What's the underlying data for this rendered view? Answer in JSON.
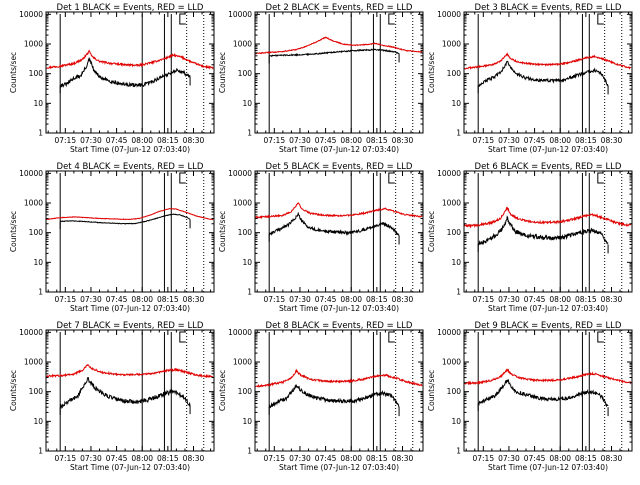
{
  "chart_data": {
    "type": "line",
    "series_colors": {
      "events": "#000000",
      "lld": "#e00000"
    },
    "x_tick_labels": [
      "07:15",
      "07:30",
      "07:45",
      "08:00",
      "08:15",
      "08:30"
    ],
    "x_tick_minutes": [
      15,
      30,
      45,
      60,
      75,
      90
    ],
    "y_tick_labels": [
      "1",
      "10",
      "100",
      "1000",
      "10000"
    ],
    "y_tick_values": [
      1,
      10,
      100,
      1000,
      10000
    ],
    "x_minutes_range": [
      3.7,
      102
    ],
    "ylim": [
      1,
      12000
    ],
    "y_scale": "log",
    "ylabel": "Counts/sec",
    "xlabel": "Start Time (07-Jun-12 07:03:40)",
    "marker_lines": {
      "solid_minutes": [
        12,
        60,
        73,
        77
      ],
      "dotted_minutes": [
        86,
        96
      ],
      "flag_minutes": [
        82
      ]
    },
    "panels": [
      {
        "title": "Det 1 BLACK = Events, RED = LLD",
        "black_start": 12,
        "black_end": 88,
        "black_points": [
          [
            12,
            40
          ],
          [
            16,
            45
          ],
          [
            20,
            70
          ],
          [
            24,
            85
          ],
          [
            27,
            160
          ],
          [
            29,
            300
          ],
          [
            30,
            230
          ],
          [
            32,
            120
          ],
          [
            36,
            70
          ],
          [
            42,
            55
          ],
          [
            48,
            45
          ],
          [
            54,
            42
          ],
          [
            60,
            40
          ],
          [
            66,
            55
          ],
          [
            72,
            80
          ],
          [
            77,
            110
          ],
          [
            80,
            130
          ],
          [
            84,
            110
          ],
          [
            88,
            80
          ]
        ],
        "black_noise": 0.06,
        "red_points": [
          [
            4,
            160
          ],
          [
            12,
            180
          ],
          [
            20,
            220
          ],
          [
            25,
            300
          ],
          [
            29,
            560
          ],
          [
            31,
            360
          ],
          [
            35,
            260
          ],
          [
            42,
            220
          ],
          [
            50,
            200
          ],
          [
            58,
            190
          ],
          [
            66,
            240
          ],
          [
            73,
            320
          ],
          [
            78,
            420
          ],
          [
            83,
            360
          ],
          [
            90,
            230
          ],
          [
            96,
            175
          ],
          [
            100,
            160
          ]
        ],
        "red_noise": 0.03
      },
      {
        "title": "Det 2 BLACK = Events, RED = LLD",
        "black_start": 12,
        "black_end": 88,
        "black_points": [
          [
            12,
            400
          ],
          [
            20,
            420
          ],
          [
            28,
            430
          ],
          [
            35,
            450
          ],
          [
            42,
            480
          ],
          [
            48,
            520
          ],
          [
            55,
            560
          ],
          [
            62,
            600
          ],
          [
            68,
            620
          ],
          [
            74,
            650
          ],
          [
            78,
            620
          ],
          [
            84,
            560
          ],
          [
            88,
            480
          ]
        ],
        "black_noise": 0.02,
        "red_points": [
          [
            4,
            480
          ],
          [
            12,
            520
          ],
          [
            20,
            560
          ],
          [
            28,
            650
          ],
          [
            34,
            850
          ],
          [
            40,
            1200
          ],
          [
            45,
            1700
          ],
          [
            49,
            1300
          ],
          [
            55,
            1000
          ],
          [
            62,
            900
          ],
          [
            68,
            950
          ],
          [
            74,
            1050
          ],
          [
            78,
            900
          ],
          [
            84,
            800
          ],
          [
            92,
            600
          ],
          [
            100,
            550
          ]
        ],
        "red_noise": 0.015
      },
      {
        "title": "Det 3 BLACK = Events, RED = LLD",
        "black_start": 12,
        "black_end": 88,
        "black_points": [
          [
            12,
            40
          ],
          [
            17,
            60
          ],
          [
            22,
            80
          ],
          [
            26,
            130
          ],
          [
            29,
            260
          ],
          [
            31,
            160
          ],
          [
            34,
            100
          ],
          [
            40,
            70
          ],
          [
            48,
            60
          ],
          [
            56,
            58
          ],
          [
            62,
            60
          ],
          [
            68,
            80
          ],
          [
            75,
            110
          ],
          [
            80,
            130
          ],
          [
            84,
            100
          ],
          [
            88,
            40
          ]
        ],
        "black_noise": 0.05,
        "red_points": [
          [
            4,
            150
          ],
          [
            12,
            170
          ],
          [
            20,
            200
          ],
          [
            25,
            260
          ],
          [
            29,
            460
          ],
          [
            31,
            320
          ],
          [
            36,
            240
          ],
          [
            44,
            210
          ],
          [
            52,
            200
          ],
          [
            60,
            210
          ],
          [
            68,
            260
          ],
          [
            75,
            340
          ],
          [
            80,
            380
          ],
          [
            86,
            300
          ],
          [
            92,
            220
          ],
          [
            100,
            160
          ]
        ],
        "red_noise": 0.025
      },
      {
        "title": "Det 4 BLACK = Events, RED = LLD",
        "black_start": 12,
        "black_end": 88,
        "black_points": [
          [
            12,
            240
          ],
          [
            18,
            250
          ],
          [
            26,
            240
          ],
          [
            34,
            220
          ],
          [
            42,
            210
          ],
          [
            50,
            200
          ],
          [
            56,
            205
          ],
          [
            62,
            240
          ],
          [
            68,
            300
          ],
          [
            74,
            380
          ],
          [
            78,
            420
          ],
          [
            82,
            400
          ],
          [
            86,
            330
          ],
          [
            88,
            280
          ]
        ],
        "black_noise": 0.01,
        "red_points": [
          [
            4,
            280
          ],
          [
            12,
            320
          ],
          [
            20,
            340
          ],
          [
            28,
            320
          ],
          [
            36,
            300
          ],
          [
            44,
            290
          ],
          [
            52,
            280
          ],
          [
            58,
            300
          ],
          [
            64,
            380
          ],
          [
            70,
            520
          ],
          [
            76,
            650
          ],
          [
            80,
            620
          ],
          [
            86,
            480
          ],
          [
            92,
            360
          ],
          [
            100,
            280
          ]
        ],
        "red_noise": 0.008
      },
      {
        "title": "Det 5 BLACK = Events, RED = LLD",
        "black_start": 12,
        "black_end": 88,
        "black_points": [
          [
            12,
            90
          ],
          [
            18,
            130
          ],
          [
            23,
            180
          ],
          [
            27,
            300
          ],
          [
            29,
            420
          ],
          [
            31,
            250
          ],
          [
            35,
            150
          ],
          [
            40,
            120
          ],
          [
            48,
            110
          ],
          [
            56,
            100
          ],
          [
            62,
            105
          ],
          [
            68,
            130
          ],
          [
            74,
            170
          ],
          [
            79,
            200
          ],
          [
            84,
            150
          ],
          [
            88,
            80
          ]
        ],
        "black_noise": 0.05,
        "red_points": [
          [
            4,
            330
          ],
          [
            12,
            350
          ],
          [
            20,
            380
          ],
          [
            25,
            520
          ],
          [
            29,
            1000
          ],
          [
            31,
            650
          ],
          [
            36,
            450
          ],
          [
            44,
            390
          ],
          [
            52,
            370
          ],
          [
            60,
            390
          ],
          [
            68,
            460
          ],
          [
            75,
            580
          ],
          [
            80,
            640
          ],
          [
            86,
            500
          ],
          [
            92,
            400
          ],
          [
            100,
            350
          ]
        ],
        "red_noise": 0.025
      },
      {
        "title": "Det 6 BLACK = Events, RED = LLD",
        "black_start": 12,
        "black_end": 88,
        "black_points": [
          [
            12,
            40
          ],
          [
            17,
            55
          ],
          [
            22,
            80
          ],
          [
            26,
            130
          ],
          [
            29,
            300
          ],
          [
            31,
            180
          ],
          [
            34,
            110
          ],
          [
            40,
            80
          ],
          [
            48,
            70
          ],
          [
            56,
            65
          ],
          [
            62,
            70
          ],
          [
            68,
            90
          ],
          [
            74,
            110
          ],
          [
            79,
            120
          ],
          [
            84,
            90
          ],
          [
            88,
            40
          ]
        ],
        "black_noise": 0.07,
        "red_points": [
          [
            4,
            170
          ],
          [
            12,
            180
          ],
          [
            20,
            220
          ],
          [
            25,
            300
          ],
          [
            29,
            700
          ],
          [
            31,
            420
          ],
          [
            36,
            280
          ],
          [
            44,
            230
          ],
          [
            52,
            220
          ],
          [
            60,
            230
          ],
          [
            68,
            290
          ],
          [
            75,
            380
          ],
          [
            80,
            400
          ],
          [
            86,
            300
          ],
          [
            92,
            220
          ],
          [
            100,
            180
          ]
        ],
        "red_noise": 0.035
      },
      {
        "title": "Det 7 BLACK = Events, RED = LLD",
        "black_start": 12,
        "black_end": 88,
        "black_points": [
          [
            12,
            30
          ],
          [
            17,
            50
          ],
          [
            22,
            70
          ],
          [
            26,
            160
          ],
          [
            28,
            280
          ],
          [
            30,
            200
          ],
          [
            34,
            110
          ],
          [
            40,
            70
          ],
          [
            48,
            50
          ],
          [
            56,
            45
          ],
          [
            62,
            50
          ],
          [
            68,
            65
          ],
          [
            74,
            90
          ],
          [
            79,
            100
          ],
          [
            84,
            70
          ],
          [
            88,
            35
          ]
        ],
        "black_noise": 0.07,
        "red_points": [
          [
            4,
            330
          ],
          [
            12,
            350
          ],
          [
            20,
            390
          ],
          [
            25,
            520
          ],
          [
            28,
            800
          ],
          [
            30,
            620
          ],
          [
            36,
            450
          ],
          [
            44,
            390
          ],
          [
            52,
            370
          ],
          [
            60,
            380
          ],
          [
            68,
            430
          ],
          [
            75,
            520
          ],
          [
            80,
            560
          ],
          [
            86,
            450
          ],
          [
            92,
            360
          ],
          [
            100,
            320
          ]
        ],
        "red_noise": 0.03
      },
      {
        "title": "Det 8 BLACK = Events, RED = LLD",
        "black_start": 12,
        "black_end": 88,
        "black_points": [
          [
            12,
            30
          ],
          [
            17,
            45
          ],
          [
            22,
            60
          ],
          [
            26,
            110
          ],
          [
            28,
            170
          ],
          [
            30,
            120
          ],
          [
            34,
            80
          ],
          [
            40,
            60
          ],
          [
            48,
            50
          ],
          [
            56,
            48
          ],
          [
            62,
            50
          ],
          [
            68,
            60
          ],
          [
            74,
            80
          ],
          [
            79,
            90
          ],
          [
            84,
            70
          ],
          [
            88,
            30
          ]
        ],
        "black_noise": 0.06,
        "red_points": [
          [
            4,
            150
          ],
          [
            12,
            170
          ],
          [
            20,
            210
          ],
          [
            25,
            300
          ],
          [
            28,
            500
          ],
          [
            30,
            380
          ],
          [
            36,
            260
          ],
          [
            44,
            230
          ],
          [
            52,
            220
          ],
          [
            60,
            230
          ],
          [
            68,
            270
          ],
          [
            75,
            340
          ],
          [
            80,
            360
          ],
          [
            86,
            290
          ],
          [
            92,
            220
          ],
          [
            100,
            170
          ]
        ],
        "red_noise": 0.03
      },
      {
        "title": "Det 9 BLACK = Events, RED = LLD",
        "black_start": 12,
        "black_end": 88,
        "black_points": [
          [
            12,
            40
          ],
          [
            17,
            55
          ],
          [
            22,
            75
          ],
          [
            26,
            140
          ],
          [
            29,
            260
          ],
          [
            31,
            160
          ],
          [
            34,
            100
          ],
          [
            40,
            80
          ],
          [
            48,
            60
          ],
          [
            56,
            55
          ],
          [
            62,
            58
          ],
          [
            68,
            70
          ],
          [
            74,
            90
          ],
          [
            79,
            100
          ],
          [
            84,
            70
          ],
          [
            88,
            30
          ]
        ],
        "black_noise": 0.06,
        "red_points": [
          [
            4,
            190
          ],
          [
            12,
            200
          ],
          [
            20,
            240
          ],
          [
            25,
            320
          ],
          [
            29,
            560
          ],
          [
            31,
            400
          ],
          [
            36,
            290
          ],
          [
            44,
            250
          ],
          [
            52,
            240
          ],
          [
            60,
            250
          ],
          [
            68,
            300
          ],
          [
            75,
            380
          ],
          [
            80,
            400
          ],
          [
            86,
            320
          ],
          [
            92,
            250
          ],
          [
            100,
            200
          ]
        ],
        "red_noise": 0.03
      }
    ]
  }
}
